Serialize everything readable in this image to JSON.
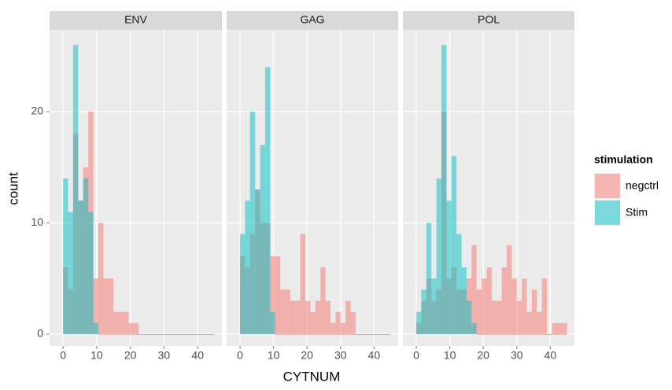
{
  "chart_data": {
    "type": "histogram",
    "x_label": "CYTNUM",
    "y_label": "count",
    "legend_title": "stimulation",
    "series": [
      {
        "name": "negctrl",
        "color": "#F8766D"
      },
      {
        "name": "Stim",
        "color": "#00BFC4"
      }
    ],
    "bins": [
      0,
      1.5,
      3,
      4.5,
      6,
      7.5,
      9,
      10.5,
      12,
      13.5,
      15,
      16.5,
      18,
      19.5,
      21,
      22.5,
      24,
      25.5,
      27,
      28.5,
      30,
      31.5,
      33,
      34.5,
      36,
      37.5,
      39,
      40.5,
      42,
      43.5,
      45
    ],
    "xlim": [
      -4,
      47.2
    ],
    "ylim": [
      -1.06,
      27.35
    ],
    "xticks": [
      0,
      10,
      20,
      30,
      40
    ],
    "yticks": [
      0,
      10,
      20
    ],
    "grid": true,
    "facets": [
      {
        "title": "ENV",
        "series": [
          {
            "values": [
              6,
              4,
              18,
              12,
              15,
              20,
              5,
              10,
              5,
              5,
              2,
              2,
              2,
              1,
              1,
              0,
              0,
              0,
              0,
              0,
              0,
              0,
              0,
              0,
              0,
              0,
              0,
              0,
              0,
              0
            ]
          },
          {
            "values": [
              14,
              11,
              26,
              12,
              14,
              11,
              1,
              0,
              0,
              0,
              0,
              0,
              0,
              0,
              0,
              0,
              0,
              0,
              0,
              0,
              0,
              0,
              0,
              0,
              0,
              0,
              0,
              0,
              0,
              0
            ]
          }
        ]
      },
      {
        "title": "GAG",
        "series": [
          {
            "values": [
              7,
              6,
              9,
              13,
              10,
              10,
              7,
              7,
              4,
              4,
              3,
              3,
              9,
              3,
              2,
              3,
              6,
              3,
              1,
              2,
              1,
              3,
              2,
              0,
              0,
              0,
              0,
              0,
              0,
              0
            ]
          },
          {
            "values": [
              9,
              12,
              20,
              13,
              17,
              24,
              2,
              0,
              0,
              0,
              0,
              0,
              0,
              0,
              0,
              0,
              0,
              0,
              0,
              0,
              0,
              0,
              0,
              0,
              0,
              0,
              0,
              0,
              0,
              0
            ]
          }
        ]
      },
      {
        "title": "POL",
        "series": [
          {
            "values": [
              1,
              3,
              5,
              3,
              4,
              20,
              5,
              6,
              4,
              4,
              5,
              8,
              4,
              5,
              6,
              3,
              3,
              6,
              8,
              5,
              3,
              5,
              2,
              4,
              2,
              5,
              0,
              1,
              1,
              1
            ]
          },
          {
            "values": [
              2,
              4,
              10,
              5,
              14,
              26,
              12,
              16,
              9,
              6,
              3,
              1,
              0,
              0,
              0,
              0,
              0,
              0,
              0,
              0,
              0,
              0,
              0,
              0,
              0,
              0,
              0,
              0,
              0,
              0
            ]
          }
        ]
      }
    ]
  }
}
